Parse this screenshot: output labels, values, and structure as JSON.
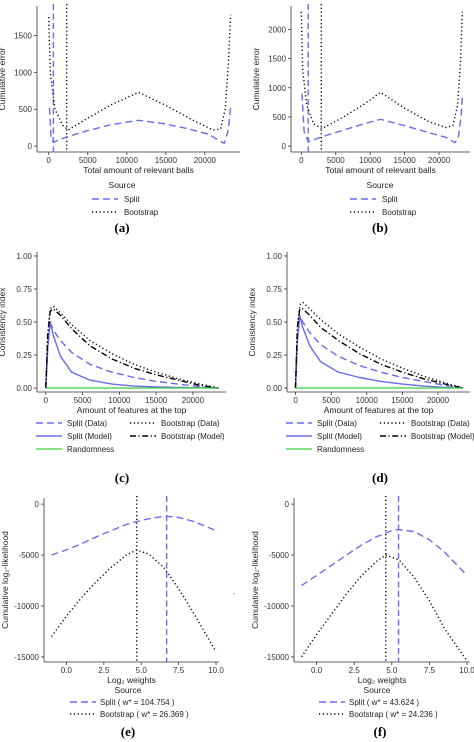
{
  "colors": {
    "split": "#6b6bee",
    "split_model": "#6b6bee",
    "bootstrap": "#000000",
    "randomness": "#3ad13a",
    "vline_split": "#6b6bee",
    "vline_bootstrap": "#000000",
    "axis": "#333333"
  },
  "chart_data": [
    {
      "panel": "(a)",
      "type": "line",
      "xlabel": "Total amount of relevant balls",
      "ylabel": "Cumulative error",
      "xlim": [
        -1500,
        24500
      ],
      "ylim": [
        -80,
        1900
      ],
      "xticks": [
        0,
        5000,
        10000,
        15000,
        20000
      ],
      "xtick_labels": [
        "0",
        "5000",
        "10000",
        "15000",
        "20000"
      ],
      "yticks": [
        0,
        500,
        1000,
        1500
      ],
      "ytick_labels": [
        "0",
        "500",
        "1000",
        "1500"
      ],
      "vlines": [
        {
          "series": "Split",
          "x": 600
        },
        {
          "series": "Bootstrap",
          "x": 2300
        }
      ],
      "series": [
        {
          "name": "Split",
          "style": "dashed",
          "x": [
            100,
            300,
            600,
            1200,
            2500,
            5000,
            8000,
            11500,
            15000,
            18000,
            20500,
            22000,
            22500,
            23000,
            23300
          ],
          "y": [
            520,
            120,
            50,
            80,
            130,
            210,
            290,
            350,
            300,
            230,
            160,
            60,
            40,
            220,
            520
          ]
        },
        {
          "name": "Bootstrap",
          "style": "dotted",
          "x": [
            0,
            200,
            800,
            1800,
            2500,
            5000,
            8000,
            11500,
            15000,
            18500,
            21000,
            22000,
            22600,
            23000,
            23300
          ],
          "y": [
            1750,
            1000,
            500,
            280,
            220,
            380,
            560,
            730,
            550,
            350,
            220,
            230,
            500,
            1100,
            1780
          ]
        }
      ],
      "legend": {
        "title": "Source",
        "entries": [
          "Split",
          "Bootstrap"
        ]
      }
    },
    {
      "panel": "(b)",
      "type": "line",
      "xlabel": "Total amount of relevant balls",
      "ylabel": "Cumulative error",
      "xlim": [
        -1500,
        24500
      ],
      "ylim": [
        -100,
        2400
      ],
      "xticks": [
        0,
        5000,
        10000,
        15000,
        20000
      ],
      "xtick_labels": [
        "0",
        "5000",
        "10000",
        "15000",
        "20000"
      ],
      "yticks": [
        0,
        500,
        1000,
        1500,
        2000
      ],
      "ytick_labels": [
        "0",
        "500",
        "1000",
        "1500",
        "2000"
      ],
      "vlines": [
        {
          "series": "Split",
          "x": 1000
        },
        {
          "series": "Bootstrap",
          "x": 2900
        }
      ],
      "series": [
        {
          "name": "Split",
          "style": "dashed",
          "x": [
            100,
            400,
            1000,
            2000,
            3000,
            6000,
            9000,
            11500,
            15000,
            18000,
            21000,
            22300,
            22800,
            23200,
            23400
          ],
          "y": [
            900,
            250,
            80,
            120,
            160,
            270,
            380,
            460,
            350,
            250,
            150,
            60,
            150,
            500,
            850
          ]
        },
        {
          "name": "Bootstrap",
          "style": "dotted",
          "x": [
            0,
            200,
            800,
            1800,
            3000,
            6000,
            9000,
            11500,
            15000,
            18500,
            21000,
            22000,
            22700,
            23100,
            23400
          ],
          "y": [
            2300,
            1300,
            700,
            380,
            300,
            490,
            710,
            920,
            650,
            420,
            320,
            350,
            700,
            1400,
            2300
          ]
        }
      ],
      "legend": {
        "title": "Source",
        "entries": [
          "Split",
          "Bootstrap"
        ]
      }
    },
    {
      "panel": "(c)",
      "type": "line",
      "xlabel": "Amount of features at the top",
      "ylabel": "Consistency index",
      "xlim": [
        -1200,
        24500
      ],
      "ylim": [
        -0.03,
        1.03
      ],
      "xticks": [
        0,
        5000,
        10000,
        15000,
        20000
      ],
      "xtick_labels": [
        "0",
        "5000",
        "10000",
        "15000",
        "20000"
      ],
      "yticks": [
        0.0,
        0.25,
        0.5,
        0.75,
        1.0
      ],
      "ytick_labels": [
        "0.00",
        "0.25",
        "0.50",
        "0.75",
        "1.00"
      ],
      "series": [
        {
          "name": "Split (Data)",
          "style": "dashed",
          "x": [
            0,
            250,
            600,
            1000,
            2000,
            3500,
            6000,
            9000,
            12000,
            15000,
            18000,
            21000,
            23500
          ],
          "y": [
            0.0,
            0.3,
            0.5,
            0.44,
            0.36,
            0.27,
            0.18,
            0.12,
            0.08,
            0.05,
            0.03,
            0.01,
            0.0
          ]
        },
        {
          "name": "Split (Model)",
          "style": "solid",
          "x": [
            0,
            250,
            600,
            1000,
            2000,
            3500,
            6000,
            9000,
            12000,
            15000,
            18000,
            21000,
            23500
          ],
          "y": [
            0.0,
            0.3,
            0.5,
            0.4,
            0.24,
            0.12,
            0.06,
            0.03,
            0.015,
            0.008,
            0.004,
            0.002,
            0.0
          ]
        },
        {
          "name": "Bootstrap (Data)",
          "style": "dotted",
          "x": [
            0,
            250,
            600,
            1000,
            2000,
            3500,
            6000,
            9000,
            12000,
            15000,
            18000,
            21000,
            23500
          ],
          "y": [
            0.0,
            0.4,
            0.6,
            0.62,
            0.57,
            0.48,
            0.36,
            0.26,
            0.18,
            0.12,
            0.07,
            0.03,
            0.0
          ]
        },
        {
          "name": "Bootstrap (Model)",
          "style": "dotdash",
          "x": [
            0,
            250,
            600,
            1000,
            2000,
            3500,
            6000,
            9000,
            12000,
            15000,
            18000,
            21000,
            23500
          ],
          "y": [
            0.0,
            0.4,
            0.58,
            0.6,
            0.55,
            0.45,
            0.32,
            0.22,
            0.15,
            0.1,
            0.06,
            0.02,
            0.0
          ]
        },
        {
          "name": "Randomness",
          "style": "solid",
          "x": [
            0,
            23500
          ],
          "y": [
            0.0,
            0.0
          ]
        }
      ],
      "legend": {
        "title": "",
        "entries": [
          "Split (Data)",
          "Bootstrap (Data)",
          "Split (Model)",
          "Bootstrap (Model)",
          "Randomness"
        ]
      }
    },
    {
      "panel": "(d)",
      "type": "line",
      "xlabel": "Amount of features at the top",
      "ylabel": "Consistency index",
      "xlim": [
        -1200,
        24500
      ],
      "ylim": [
        -0.03,
        1.03
      ],
      "xticks": [
        0,
        5000,
        10000,
        15000,
        20000
      ],
      "xtick_labels": [
        "0",
        "5000",
        "10000",
        "15000",
        "20000"
      ],
      "yticks": [
        0.0,
        0.25,
        0.5,
        0.75,
        1.0
      ],
      "ytick_labels": [
        "0.00",
        "0.25",
        "0.50",
        "0.75",
        "1.00"
      ],
      "series": [
        {
          "name": "Split (Data)",
          "style": "dashed",
          "x": [
            0,
            250,
            600,
            1000,
            2000,
            3500,
            6000,
            9000,
            12000,
            15000,
            18000,
            21000,
            23500
          ],
          "y": [
            0.0,
            0.35,
            0.55,
            0.5,
            0.42,
            0.33,
            0.24,
            0.17,
            0.12,
            0.08,
            0.05,
            0.02,
            0.0
          ]
        },
        {
          "name": "Split (Model)",
          "style": "solid",
          "x": [
            0,
            250,
            600,
            1000,
            2000,
            3500,
            6000,
            9000,
            12000,
            15000,
            18000,
            21000,
            23500
          ],
          "y": [
            0.0,
            0.35,
            0.55,
            0.46,
            0.32,
            0.2,
            0.12,
            0.08,
            0.05,
            0.03,
            0.015,
            0.005,
            0.0
          ]
        },
        {
          "name": "Bootstrap (Data)",
          "style": "dotted",
          "x": [
            0,
            250,
            600,
            1000,
            2000,
            3500,
            6000,
            9000,
            12000,
            15000,
            18000,
            21000,
            23500
          ],
          "y": [
            0.0,
            0.45,
            0.63,
            0.65,
            0.6,
            0.52,
            0.41,
            0.31,
            0.22,
            0.15,
            0.09,
            0.04,
            0.0
          ]
        },
        {
          "name": "Bootstrap (Model)",
          "style": "dotdash",
          "x": [
            0,
            250,
            600,
            1000,
            2000,
            3500,
            6000,
            9000,
            12000,
            15000,
            18000,
            21000,
            23500
          ],
          "y": [
            0.0,
            0.45,
            0.6,
            0.6,
            0.55,
            0.46,
            0.36,
            0.26,
            0.18,
            0.12,
            0.07,
            0.03,
            0.0
          ]
        },
        {
          "name": "Randomness",
          "style": "solid",
          "x": [
            0,
            23500
          ],
          "y": [
            0.0,
            0.0
          ]
        }
      ],
      "legend": {
        "title": "",
        "entries": [
          "Split (Data)",
          "Bootstrap (Data)",
          "Split (Model)",
          "Bootstrap (Model)",
          "Randomness"
        ]
      }
    },
    {
      "panel": "(e)",
      "type": "line",
      "xlabel": "Log₂ weights",
      "ylabel": "Cumulative log₂-likelihood",
      "xlim": [
        -1.5,
        10.2
      ],
      "ylim": [
        -15500,
        600
      ],
      "xticks": [
        0,
        2.5,
        5,
        7.5,
        10
      ],
      "xtick_labels": [
        "0.0",
        "2.5",
        "5.0",
        "7.5",
        "10.0"
      ],
      "yticks": [
        0,
        -5000,
        -10000,
        -15000
      ],
      "ytick_labels": [
        "0",
        "-5000",
        "-10000",
        "-15000"
      ],
      "vlines": [
        {
          "series": "Split",
          "x": 6.7
        },
        {
          "series": "Bootstrap",
          "x": 4.7
        }
      ],
      "series": [
        {
          "name": "Split",
          "style": "dashed",
          "x": [
            -1,
            0,
            1,
            2,
            3,
            4,
            5,
            6,
            6.7,
            7.5,
            8.5,
            10
          ],
          "y": [
            -5000,
            -4500,
            -3900,
            -3200,
            -2600,
            -2000,
            -1600,
            -1300,
            -1200,
            -1300,
            -1700,
            -2600
          ]
        },
        {
          "name": "Bootstrap",
          "style": "dotted",
          "x": [
            -1,
            0,
            1,
            2,
            3,
            4,
            4.7,
            5.5,
            6.5,
            7.5,
            8.5,
            10
          ],
          "y": [
            -13000,
            -11000,
            -9200,
            -7600,
            -6200,
            -5000,
            -4500,
            -4900,
            -6200,
            -8300,
            -10700,
            -14500
          ]
        }
      ],
      "legend": {
        "title": "Source",
        "entries": [
          "Split ( w* = 104.754 )",
          "Bootstrap ( w* = 26.369 )"
        ]
      }
    },
    {
      "panel": "(f)",
      "type": "line",
      "xlabel": "Log₂ weights",
      "ylabel": "Cumulative log₂-likelihood",
      "xlim": [
        -1.5,
        10.2
      ],
      "ylim": [
        -15500,
        600
      ],
      "xticks": [
        0,
        2.5,
        5,
        7.5,
        10
      ],
      "xtick_labels": [
        "0.0",
        "2.5",
        "5.0",
        "7.5",
        "10.0"
      ],
      "yticks": [
        0,
        -5000,
        -10000,
        -15000
      ],
      "ytick_labels": [
        "0",
        "-5000",
        "-10000",
        "-15000"
      ],
      "vlines": [
        {
          "series": "Split",
          "x": 5.45
        },
        {
          "series": "Bootstrap",
          "x": 4.6
        }
      ],
      "series": [
        {
          "name": "Split",
          "style": "dashed",
          "x": [
            -1,
            0,
            1,
            2,
            3,
            4,
            5,
            5.45,
            6.5,
            7.5,
            8.5,
            10
          ],
          "y": [
            -8000,
            -7000,
            -6000,
            -5000,
            -4000,
            -3200,
            -2600,
            -2500,
            -2700,
            -3500,
            -4700,
            -7000
          ]
        },
        {
          "name": "Bootstrap",
          "style": "dotted",
          "x": [
            -1,
            0,
            1,
            2,
            3,
            4,
            4.6,
            5.5,
            6.5,
            7.5,
            8.5,
            10
          ],
          "y": [
            -15000,
            -12800,
            -10800,
            -8800,
            -7000,
            -5600,
            -5000,
            -5500,
            -7200,
            -9500,
            -12200,
            -15400
          ]
        }
      ],
      "legend": {
        "title": "Source",
        "entries": [
          "Split ( w* = 43.624 )",
          "Bootstrap ( w* = 24.236 )"
        ]
      }
    }
  ],
  "panel_labels": [
    "(a)",
    "(b)",
    "(c)",
    "(d)",
    "(e)",
    "(f)"
  ],
  "stray_mark": "·"
}
